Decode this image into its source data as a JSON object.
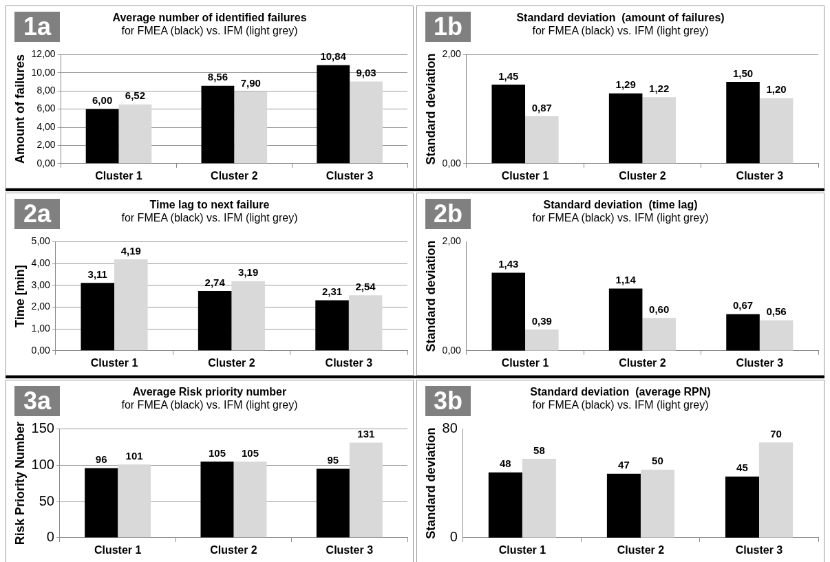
{
  "chart_data": [
    {
      "type": "bar",
      "title": "Average number of identified failures",
      "subtitle": "for FMEA (black) vs. IFM (light grey)",
      "ylabel": "Amount of failures",
      "annotations": [
        "1a"
      ],
      "categories": [
        "Cluster 1",
        "Cluster 2",
        "Cluster 3"
      ],
      "series": [
        {
          "color": "#000000",
          "values": [
            6.0,
            8.56,
            10.84
          ],
          "value_labels": [
            "6,00",
            "8,56",
            "10,84"
          ]
        },
        {
          "color": "#d9d9d9",
          "values": [
            6.52,
            7.9,
            9.03
          ],
          "value_labels": [
            "6,52",
            "7,90",
            "9,03"
          ]
        }
      ],
      "ylim": [
        0,
        12
      ],
      "yticks": [
        {
          "value": 0,
          "label": "0,00"
        },
        {
          "value": 2,
          "label": "2,00"
        },
        {
          "value": 4,
          "label": "4,00"
        },
        {
          "value": 6,
          "label": "6,00"
        },
        {
          "value": 8,
          "label": "8,00"
        },
        {
          "value": 10,
          "label": "10,00"
        },
        {
          "value": 12,
          "label": "12,00"
        }
      ],
      "grid": "y",
      "legend": false
    },
    {
      "type": "bar",
      "title": "Standard deviation  (amount of failures)",
      "subtitle": "for FMEA (black) vs. IFM (light grey)",
      "ylabel": "Standard deviation",
      "annotations": [
        "1b"
      ],
      "categories": [
        "Cluster 1",
        "Cluster 2",
        "Cluster 3"
      ],
      "series": [
        {
          "color": "#000000",
          "values": [
            1.45,
            1.29,
            1.5
          ],
          "value_labels": [
            "1,45",
            "1,29",
            "1,50"
          ]
        },
        {
          "color": "#d9d9d9",
          "values": [
            0.87,
            1.22,
            1.2
          ],
          "value_labels": [
            "0,87",
            "1,22",
            "1,20"
          ]
        }
      ],
      "ylim": [
        0,
        2
      ],
      "yticks": [
        {
          "value": 0,
          "label": "0,00"
        },
        {
          "value": 2,
          "label": "2,00"
        }
      ],
      "grid": "y",
      "legend": false
    },
    {
      "type": "bar",
      "title": "Time lag to next failure",
      "subtitle": "for FMEA (black) vs. IFM (light grey)",
      "ylabel": "Time [min]",
      "annotations": [
        "2a"
      ],
      "categories": [
        "Cluster 1",
        "Cluster 2",
        "Cluster 3"
      ],
      "series": [
        {
          "color": "#000000",
          "values": [
            3.11,
            2.74,
            2.31
          ],
          "value_labels": [
            "3,11",
            "2,74",
            "2,31"
          ]
        },
        {
          "color": "#d9d9d9",
          "values": [
            4.19,
            3.19,
            2.54
          ],
          "value_labels": [
            "4,19",
            "3,19",
            "2,54"
          ]
        }
      ],
      "ylim": [
        0,
        5
      ],
      "yticks": [
        {
          "value": 0,
          "label": "0,00"
        },
        {
          "value": 1,
          "label": "1,00"
        },
        {
          "value": 2,
          "label": "2,00"
        },
        {
          "value": 3,
          "label": "3,00"
        },
        {
          "value": 4,
          "label": "4,00"
        },
        {
          "value": 5,
          "label": "5,00"
        }
      ],
      "grid": "y",
      "legend": false
    },
    {
      "type": "bar",
      "title": "Standard deviation  (time lag)",
      "subtitle": "for FMEA (black) vs. IFM (light grey)",
      "ylabel": "Standard deviation",
      "annotations": [
        "2b"
      ],
      "categories": [
        "Cluster 1",
        "Cluster 2",
        "Cluster 3"
      ],
      "series": [
        {
          "color": "#000000",
          "values": [
            1.43,
            1.14,
            0.67
          ],
          "value_labels": [
            "1,43",
            "1,14",
            "0,67"
          ]
        },
        {
          "color": "#d9d9d9",
          "values": [
            0.39,
            0.6,
            0.56
          ],
          "value_labels": [
            "0,39",
            "0,60",
            "0,56"
          ]
        }
      ],
      "ylim": [
        0,
        2
      ],
      "yticks": [
        {
          "value": 0,
          "label": "0,00"
        },
        {
          "value": 2,
          "label": "2,00"
        }
      ],
      "legend": false
    },
    {
      "type": "bar",
      "title": "Average Risk priority number",
      "subtitle": "for FMEA (black) vs. IFM (light grey)",
      "ylabel": "Risk Priority Number",
      "annotations": [
        "3a"
      ],
      "categories": [
        "Cluster 1",
        "Cluster 2",
        "Cluster 3"
      ],
      "series": [
        {
          "color": "#000000",
          "values": [
            96,
            105,
            95
          ],
          "value_labels": [
            "96",
            "105",
            "95"
          ]
        },
        {
          "color": "#d9d9d9",
          "values": [
            101,
            105,
            131
          ],
          "value_labels": [
            "101",
            "105",
            "131"
          ]
        }
      ],
      "ylim": [
        0,
        150
      ],
      "yticks": [
        0,
        50,
        100,
        150
      ],
      "grid": "y",
      "legend": false
    },
    {
      "type": "bar",
      "title": "Standard deviation  (average RPN)",
      "subtitle": "for FMEA (black) vs. IFM (light grey)",
      "ylabel": "Standard deviation",
      "annotations": [
        "3b"
      ],
      "categories": [
        "Cluster 1",
        "Cluster 2",
        "Cluster 3"
      ],
      "series": [
        {
          "color": "#000000",
          "values": [
            48,
            47,
            45
          ],
          "value_labels": [
            "48",
            "47",
            "45"
          ]
        },
        {
          "color": "#d9d9d9",
          "values": [
            58,
            50,
            70
          ],
          "value_labels": [
            "58",
            "50",
            "70"
          ]
        }
      ],
      "ylim": [
        0,
        80
      ],
      "yticks": [
        0,
        80
      ],
      "legend": false
    }
  ]
}
